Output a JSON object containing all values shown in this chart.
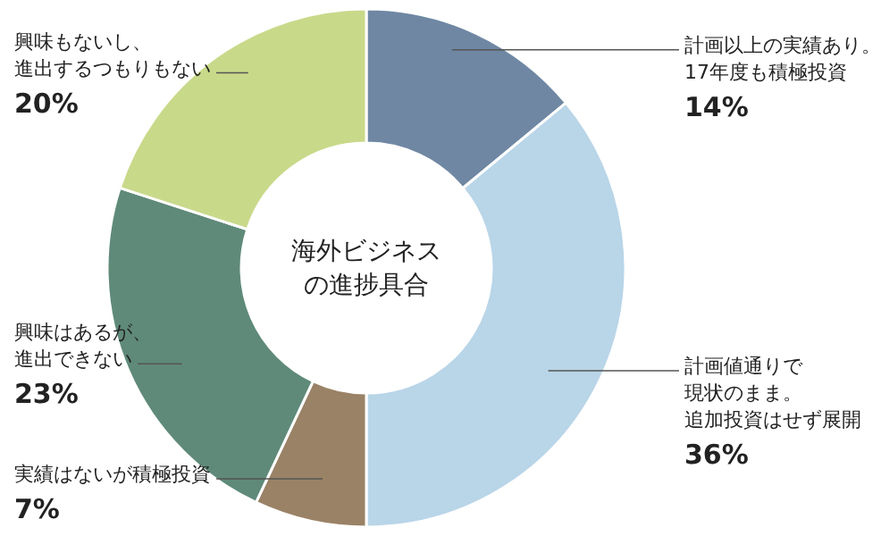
{
  "chart_data": {
    "type": "donut",
    "title": "海外ビジネスの進捗具合",
    "categories": [
      "計画以上の実績あり。17年度も積極投資",
      "計画値通りで現状のまま。追加投資はせず展開",
      "実績はないが積極投資",
      "興味はあるが、進出できない",
      "興味もないし、進出するつもりもない"
    ],
    "values": [
      14,
      36,
      7,
      23,
      20
    ],
    "value_labels": [
      "14%",
      "36%",
      "7%",
      "23%",
      "20%"
    ],
    "colors": [
      "#6f87a3",
      "#b9d5e8",
      "#9a8266",
      "#5f8a79",
      "#c9d98a"
    ],
    "legend": false
  }
}
